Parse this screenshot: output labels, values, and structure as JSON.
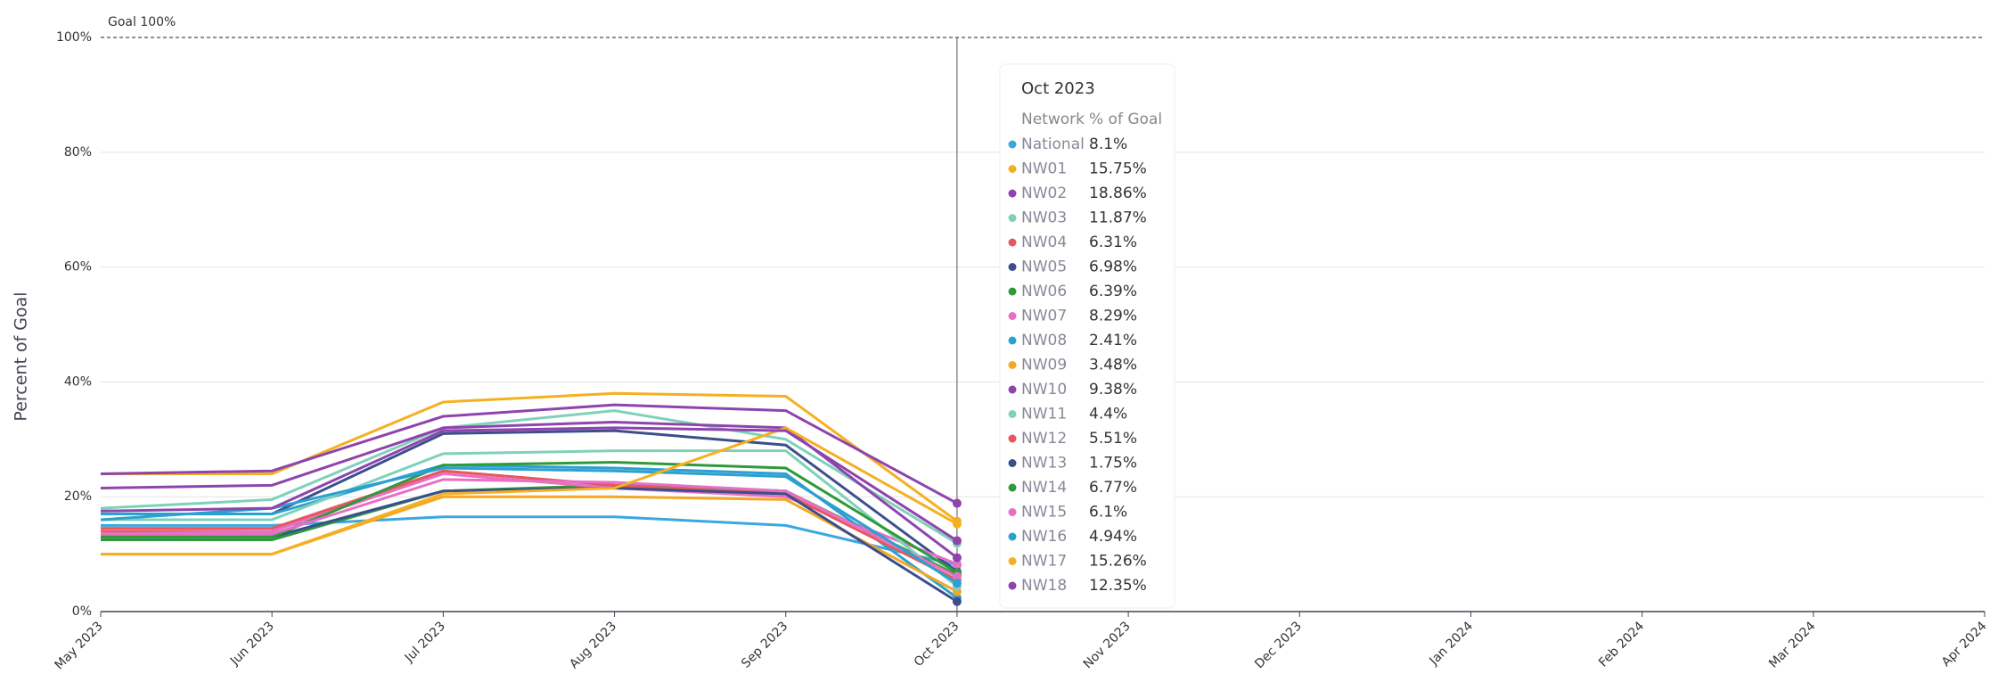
{
  "chart_data": {
    "type": "line",
    "y_axis_label": "Percent of Goal",
    "goal": {
      "label": "Goal 100%",
      "value": 100
    },
    "categories": [
      "May 2023",
      "Jun 2023",
      "Jul 2023",
      "Aug 2023",
      "Sep 2023",
      "Oct 2023",
      "Nov 2023",
      "Dec 2023",
      "Jan 2024",
      "Feb 2024",
      "Mar 2024",
      "Apr 2024"
    ],
    "ylim": [
      0,
      100
    ],
    "yticks": [
      {
        "value": 0,
        "label": "0%"
      },
      {
        "value": 20,
        "label": "20%"
      },
      {
        "value": 40,
        "label": "40%"
      },
      {
        "value": 60,
        "label": "60%"
      },
      {
        "value": 80,
        "label": "80%"
      },
      {
        "value": 100,
        "label": "100%"
      }
    ],
    "grid": true,
    "tooltip_headers": [
      "Network",
      "% of Goal"
    ],
    "tooltip_index": 5,
    "series": [
      {
        "name": "National",
        "color": "#3aa8e0",
        "values": [
          15,
          15,
          16.5,
          16.5,
          15,
          8.1,
          null,
          null,
          null,
          null,
          null,
          null
        ],
        "value_labels": [
          null,
          null,
          null,
          null,
          null,
          "8.1%",
          null,
          null,
          null,
          null,
          null,
          null
        ]
      },
      {
        "name": "NW01",
        "color": "#f5b021",
        "values": [
          24,
          24,
          36.5,
          38,
          37.5,
          15.75,
          null,
          null,
          null,
          null,
          null,
          null
        ],
        "value_labels": [
          null,
          null,
          null,
          null,
          null,
          "15.75%",
          null,
          null,
          null,
          null,
          null,
          null
        ]
      },
      {
        "name": "NW02",
        "color": "#8e44ad",
        "values": [
          24,
          24.5,
          34,
          36,
          35,
          18.86,
          null,
          null,
          null,
          null,
          null,
          null
        ],
        "value_labels": [
          null,
          null,
          null,
          null,
          null,
          "18.86%",
          null,
          null,
          null,
          null,
          null,
          null
        ]
      },
      {
        "name": "NW03",
        "color": "#7fd1b9",
        "values": [
          18,
          19.5,
          32,
          35,
          30,
          11.87,
          null,
          null,
          null,
          null,
          null,
          null
        ],
        "value_labels": [
          null,
          null,
          null,
          null,
          null,
          "11.87%",
          null,
          null,
          null,
          null,
          null,
          null
        ]
      },
      {
        "name": "NW04",
        "color": "#e8575f",
        "values": [
          14,
          14,
          24.5,
          22,
          21,
          6.31,
          null,
          null,
          null,
          null,
          null,
          null
        ],
        "value_labels": [
          null,
          null,
          null,
          null,
          null,
          "6.31%",
          null,
          null,
          null,
          null,
          null,
          null
        ]
      },
      {
        "name": "NW05",
        "color": "#3b4f8c",
        "values": [
          17,
          17,
          31,
          31.5,
          29,
          6.98,
          null,
          null,
          null,
          null,
          null,
          null
        ],
        "value_labels": [
          null,
          null,
          null,
          null,
          null,
          "6.98%",
          null,
          null,
          null,
          null,
          null,
          null
        ]
      },
      {
        "name": "NW06",
        "color": "#2e9a3a",
        "values": [
          12.5,
          12.5,
          21,
          22,
          21,
          6.39,
          null,
          null,
          null,
          null,
          null,
          null
        ],
        "value_labels": [
          null,
          null,
          null,
          null,
          null,
          "6.39%",
          null,
          null,
          null,
          null,
          null,
          null
        ]
      },
      {
        "name": "NW07",
        "color": "#e86fc4",
        "values": [
          13.5,
          14,
          24,
          21.5,
          20,
          8.29,
          null,
          null,
          null,
          null,
          null,
          null
        ],
        "value_labels": [
          null,
          null,
          null,
          null,
          null,
          "8.29%",
          null,
          null,
          null,
          null,
          null,
          null
        ]
      },
      {
        "name": "NW08",
        "color": "#2ca0d0",
        "values": [
          17,
          17,
          25.5,
          25,
          24,
          2.41,
          null,
          null,
          null,
          null,
          null,
          null
        ],
        "value_labels": [
          null,
          null,
          null,
          null,
          null,
          "2.41%",
          null,
          null,
          null,
          null,
          null,
          null
        ]
      },
      {
        "name": "NW09",
        "color": "#f5a623",
        "values": [
          10,
          10,
          20,
          20,
          19.5,
          3.48,
          null,
          null,
          null,
          null,
          null,
          null
        ],
        "value_labels": [
          null,
          null,
          null,
          null,
          null,
          "3.48%",
          null,
          null,
          null,
          null,
          null,
          null
        ]
      },
      {
        "name": "NW10",
        "color": "#8e44ad",
        "values": [
          21.5,
          22,
          32,
          33,
          32,
          9.38,
          null,
          null,
          null,
          null,
          null,
          null
        ],
        "value_labels": [
          null,
          null,
          null,
          null,
          null,
          "9.38%",
          null,
          null,
          null,
          null,
          null,
          null
        ]
      },
      {
        "name": "NW11",
        "color": "#7fd1b9",
        "values": [
          16,
          16,
          27.5,
          28,
          28,
          4.4,
          null,
          null,
          null,
          null,
          null,
          null
        ],
        "value_labels": [
          null,
          null,
          null,
          null,
          null,
          "4.4%",
          null,
          null,
          null,
          null,
          null,
          null
        ]
      },
      {
        "name": "NW12",
        "color": "#e8575f",
        "values": [
          14.5,
          14.5,
          24.5,
          22,
          20.5,
          5.51,
          null,
          null,
          null,
          null,
          null,
          null
        ],
        "value_labels": [
          null,
          null,
          null,
          null,
          null,
          "5.51%",
          null,
          null,
          null,
          null,
          null,
          null
        ]
      },
      {
        "name": "NW13",
        "color": "#3b4f8c",
        "values": [
          13,
          13,
          21,
          21.5,
          20.5,
          1.75,
          null,
          null,
          null,
          null,
          null,
          null
        ],
        "value_labels": [
          null,
          null,
          null,
          null,
          null,
          "1.75%",
          null,
          null,
          null,
          null,
          null,
          null
        ]
      },
      {
        "name": "NW14",
        "color": "#2e9a3a",
        "values": [
          13,
          13,
          25.5,
          26,
          25,
          6.77,
          null,
          null,
          null,
          null,
          null,
          null
        ],
        "value_labels": [
          null,
          null,
          null,
          null,
          null,
          "6.77%",
          null,
          null,
          null,
          null,
          null,
          null
        ]
      },
      {
        "name": "NW15",
        "color": "#e86fc4",
        "values": [
          13.5,
          13.5,
          23,
          22.5,
          21,
          6.1,
          null,
          null,
          null,
          null,
          null,
          null
        ],
        "value_labels": [
          null,
          null,
          null,
          null,
          null,
          "6.1%",
          null,
          null,
          null,
          null,
          null,
          null
        ]
      },
      {
        "name": "NW16",
        "color": "#2ca0d0",
        "values": [
          16,
          18,
          25,
          24.5,
          23.5,
          4.94,
          null,
          null,
          null,
          null,
          null,
          null
        ],
        "value_labels": [
          null,
          null,
          null,
          null,
          null,
          "4.94%",
          null,
          null,
          null,
          null,
          null,
          null
        ]
      },
      {
        "name": "NW17",
        "color": "#f5b021",
        "values": [
          10,
          10,
          20.5,
          21.5,
          32,
          15.26,
          null,
          null,
          null,
          null,
          null,
          null
        ],
        "value_labels": [
          null,
          null,
          null,
          null,
          null,
          "15.26%",
          null,
          null,
          null,
          null,
          null,
          null
        ]
      },
      {
        "name": "NW18",
        "color": "#8e44ad",
        "values": [
          17.5,
          18,
          31.5,
          32,
          31.5,
          12.35,
          null,
          null,
          null,
          null,
          null,
          null
        ],
        "value_labels": [
          null,
          null,
          null,
          null,
          null,
          "12.35%",
          null,
          null,
          null,
          null,
          null,
          null
        ]
      }
    ]
  }
}
